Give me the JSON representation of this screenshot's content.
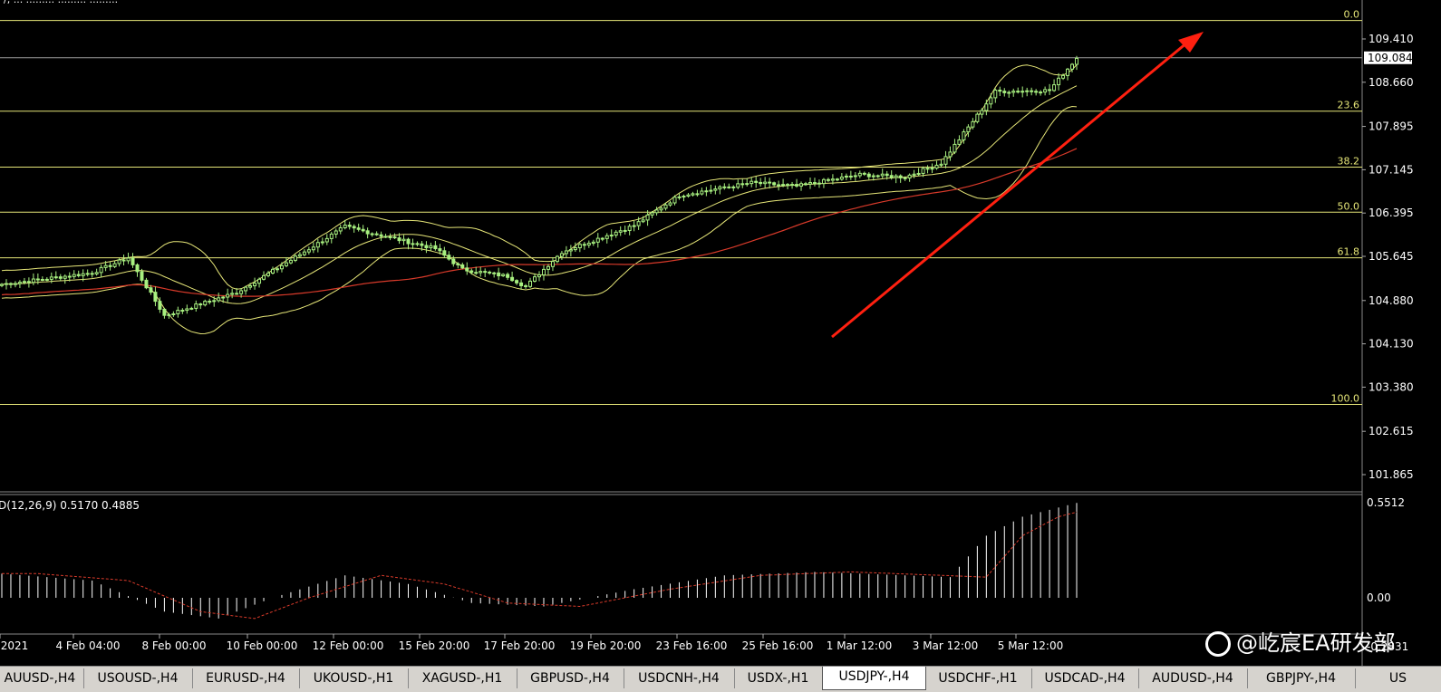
{
  "colors": {
    "background": "#000000",
    "fib_line": "#e6e678",
    "candle": "#a8f080",
    "bollinger": "#e6e678",
    "ma": "#d83a2a",
    "arrow": "#ff2010",
    "axis_text": "#ffffff",
    "macd_hist": "#ffffff",
    "macd_signal": "#d83a2a"
  },
  "header_partial": "/, ... ......... ......... .........",
  "price_axis": {
    "labels": [
      "109.410",
      "108.660",
      "107.895",
      "107.145",
      "106.395",
      "105.645",
      "104.880",
      "104.130",
      "103.380",
      "102.615",
      "101.865"
    ],
    "values": [
      109.41,
      108.66,
      107.895,
      107.145,
      106.395,
      105.645,
      104.88,
      104.13,
      103.38,
      102.615,
      101.865
    ],
    "current_price": "109.084",
    "current_value": 109.084
  },
  "fibonacci": {
    "levels": [
      {
        "label": "0.0",
        "price": 109.73
      },
      {
        "label": "23.6",
        "price": 108.16
      },
      {
        "label": "38.2",
        "price": 107.19
      },
      {
        "label": "50.0",
        "price": 106.41
      },
      {
        "label": "61.8",
        "price": 105.62
      },
      {
        "label": "100.0",
        "price": 103.08
      }
    ]
  },
  "time_axis": {
    "labels": [
      "2021",
      "4 Feb 04:00",
      "8 Feb 00:00",
      "10 Feb 00:00",
      "12 Feb 00:00",
      "15 Feb 20:00",
      "17 Feb 20:00",
      "19 Feb 20:00",
      "23 Feb 16:00",
      "25 Feb 16:00",
      "1 Mar 12:00",
      "3 Mar 12:00",
      "5 Mar 12:00"
    ]
  },
  "macd": {
    "title": "D(12,26,9) 0.5170 0.4885",
    "axis_labels": [
      "0.5512",
      "0.00",
      "-0.2831"
    ],
    "axis_values": [
      0.5512,
      0.0,
      -0.2831
    ]
  },
  "chart_data": {
    "type": "candlestick",
    "symbol": "USDJPY-,H4",
    "price_range": [
      101.6,
      109.9
    ],
    "close_path_index": [
      0,
      20,
      28,
      36,
      52,
      64,
      76,
      96,
      102,
      112,
      116,
      124,
      140,
      150,
      166,
      176,
      190,
      200,
      208,
      220,
      232,
      238
    ],
    "close_path_price": [
      105.16,
      105.36,
      105.62,
      104.62,
      105.02,
      105.58,
      106.16,
      105.78,
      105.42,
      105.3,
      105.12,
      105.72,
      106.18,
      106.7,
      106.92,
      106.86,
      107.06,
      107.02,
      107.26,
      108.5,
      108.52,
      109.08
    ],
    "macd_hist_index": [
      0,
      20,
      36,
      48,
      60,
      76,
      90,
      104,
      120,
      140,
      160,
      180,
      200,
      210,
      218,
      226,
      238
    ],
    "macd_hist_values": [
      0.14,
      0.1,
      -0.08,
      -0.12,
      0.0,
      0.13,
      0.08,
      -0.03,
      -0.05,
      0.05,
      0.13,
      0.15,
      0.13,
      0.12,
      0.36,
      0.47,
      0.55
    ]
  },
  "tabs": [
    "AUUSD-,H4",
    "USOUSD-,H4",
    "EURUSD-,H4",
    "UKOUSD-,H1",
    "XAGUSD-,H1",
    "GBPUSD-,H4",
    "USDCNH-,H4",
    "USDX-,H1",
    "USDJPY-,H4",
    "USDCHF-,H1",
    "USDCAD-,H4",
    "AUDUSD-,H4",
    "GBPJPY-,H4",
    "US"
  ],
  "active_tab": "USDJPY-,H4",
  "watermark": "@屹宸EA研发部"
}
